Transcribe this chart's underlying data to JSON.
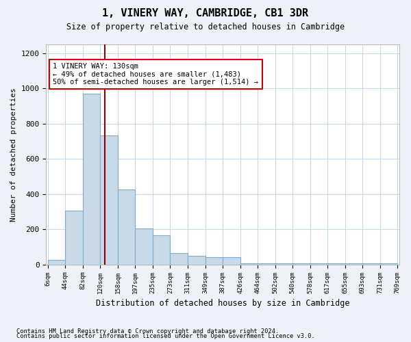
{
  "title": "1, VINERY WAY, CAMBRIDGE, CB1 3DR",
  "subtitle": "Size of property relative to detached houses in Cambridge",
  "xlabel": "Distribution of detached houses by size in Cambridge",
  "ylabel": "Number of detached properties",
  "bin_edges": [
    6,
    44,
    82,
    120,
    158,
    197,
    235,
    273,
    311,
    349,
    387,
    426,
    464,
    502,
    540,
    578,
    617,
    655,
    693,
    731,
    769
  ],
  "bin_labels": [
    "6sqm",
    "44sqm",
    "82sqm",
    "120sqm",
    "158sqm",
    "197sqm",
    "235sqm",
    "273sqm",
    "311sqm",
    "349sqm",
    "387sqm",
    "426sqm",
    "464sqm",
    "502sqm",
    "540sqm",
    "578sqm",
    "617sqm",
    "655sqm",
    "693sqm",
    "731sqm",
    "769sqm"
  ],
  "bar_heights": [
    25,
    305,
    970,
    735,
    425,
    205,
    165,
    65,
    50,
    40,
    40,
    5,
    5,
    5,
    5,
    5,
    5,
    5,
    5,
    5
  ],
  "bar_color": "#c8d9e8",
  "bar_edge_color": "#7faac8",
  "property_sqm": 130,
  "property_line_color": "#8b0000",
  "annotation_text": "1 VINERY WAY: 130sqm\n← 49% of detached houses are smaller (1,483)\n50% of semi-detached houses are larger (1,514) →",
  "annotation_box_color": "#ffffff",
  "annotation_box_edge_color": "#cc0000",
  "ylim": [
    0,
    1250
  ],
  "yticks": [
    0,
    200,
    400,
    600,
    800,
    1000,
    1200
  ],
  "footnote1": "Contains HM Land Registry data © Crown copyright and database right 2024.",
  "footnote2": "Contains public sector information licensed under the Open Government Licence v3.0.",
  "background_color": "#eef2f7",
  "plot_bg_color": "#ffffff",
  "grid_color": "#c8d8e8"
}
